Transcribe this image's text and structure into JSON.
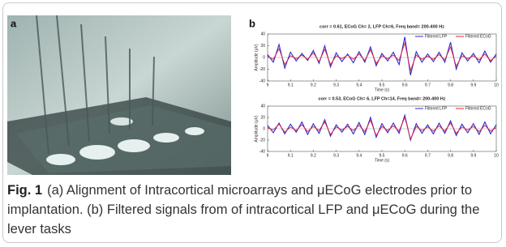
{
  "figure": {
    "panel_labels": [
      "a",
      "b"
    ],
    "caption": {
      "label": "Fig. 1",
      "text": "(a) Alignment of Intracortical microarrays and μECoG electrodes prior to implantation. (b) Filtered signals from of intracortical LFP and μECoG during the lever tasks"
    }
  },
  "chart_data": [
    {
      "type": "line",
      "title": "corr = 0.61, ECoG Ch= 2, LFP Ch=6, Freq band= 200-400 Hz",
      "xlabel": "Time (s)",
      "ylabel": "Amplitude (μV)",
      "x": [
        9,
        9.025,
        9.05,
        9.075,
        9.1,
        9.125,
        9.15,
        9.175,
        9.2,
        9.225,
        9.25,
        9.275,
        9.3,
        9.325,
        9.35,
        9.375,
        9.4,
        9.425,
        9.45,
        9.475,
        9.5,
        9.525,
        9.55,
        9.575,
        9.6,
        9.625,
        9.65,
        9.675,
        9.7,
        9.725,
        9.75,
        9.775,
        9.8,
        9.825,
        9.85,
        9.875,
        9.9,
        9.925,
        9.95,
        9.975,
        10
      ],
      "series": [
        {
          "name": "Filtered LFP",
          "color": "#2b2bd6",
          "values": [
            5,
            -8,
            22,
            -18,
            9,
            -6,
            7,
            -5,
            12,
            -10,
            20,
            -16,
            8,
            -7,
            6,
            -9,
            10,
            -8,
            18,
            -14,
            7,
            -6,
            9,
            -12,
            35,
            -30,
            10,
            -8,
            6,
            -7,
            9,
            -8,
            26,
            -20,
            8,
            -6,
            7,
            -9,
            11,
            -8,
            6
          ]
        },
        {
          "name": "Filtered ECoG",
          "color": "#e8203a",
          "values": [
            2,
            -3,
            15,
            -12,
            3,
            -2,
            4,
            -3,
            8,
            -7,
            14,
            -12,
            3,
            -2,
            4,
            -3,
            6,
            -5,
            13,
            -10,
            3,
            -2,
            4,
            -5,
            25,
            -22,
            4,
            -3,
            2,
            -3,
            5,
            -4,
            18,
            -15,
            3,
            -2,
            3,
            -4,
            6,
            -5,
            2
          ]
        }
      ],
      "xlim": [
        9,
        10
      ],
      "ylim": [
        -40,
        40
      ],
      "xticks": [
        9,
        9.1,
        9.2,
        9.3,
        9.4,
        9.5,
        9.6,
        9.7,
        9.8,
        9.9,
        10
      ],
      "yticks": [
        -40,
        -20,
        0,
        20,
        40
      ],
      "legend": "upper right"
    },
    {
      "type": "line",
      "title": "corr = 0.53, ECoG Ch= 6, LFP Ch=14, Freq band= 200-400 Hz",
      "xlabel": "Time (s)",
      "ylabel": "Amplitude (μV)",
      "x": [
        9,
        9.025,
        9.05,
        9.075,
        9.1,
        9.125,
        9.15,
        9.175,
        9.2,
        9.225,
        9.25,
        9.275,
        9.3,
        9.325,
        9.35,
        9.375,
        9.4,
        9.425,
        9.45,
        9.475,
        9.5,
        9.525,
        9.55,
        9.575,
        9.6,
        9.625,
        9.65,
        9.675,
        9.7,
        9.725,
        9.75,
        9.775,
        9.8,
        9.825,
        9.85,
        9.875,
        9.9,
        9.925,
        9.95,
        9.975,
        10
      ],
      "series": [
        {
          "name": "Filtered LFP",
          "color": "#2b2bd6",
          "values": [
            6,
            -7,
            10,
            -9,
            8,
            -6,
            12,
            -10,
            9,
            -8,
            16,
            -13,
            7,
            -6,
            8,
            -9,
            11,
            -10,
            20,
            -15,
            9,
            -7,
            10,
            -8,
            24,
            -20,
            9,
            -8,
            7,
            -9,
            10,
            -8,
            14,
            -12,
            8,
            -7,
            9,
            -10,
            12,
            -9,
            7
          ]
        },
        {
          "name": "Filtered ECoG",
          "color": "#e8203a",
          "values": [
            2,
            -2,
            8,
            -6,
            3,
            -3,
            7,
            -5,
            4,
            -3,
            12,
            -10,
            3,
            -2,
            4,
            -3,
            6,
            -5,
            15,
            -12,
            4,
            -3,
            5,
            -4,
            20,
            -18,
            4,
            -3,
            3,
            -4,
            5,
            -4,
            10,
            -8,
            3,
            -2,
            4,
            -5,
            6,
            -4,
            2
          ]
        }
      ],
      "xlim": [
        9,
        10
      ],
      "ylim": [
        -40,
        40
      ],
      "xticks": [
        9,
        9.1,
        9.2,
        9.3,
        9.4,
        9.5,
        9.6,
        9.7,
        9.8,
        9.9,
        10
      ],
      "yticks": [
        -40,
        -20,
        0,
        20,
        40
      ],
      "legend": "upper right"
    }
  ]
}
